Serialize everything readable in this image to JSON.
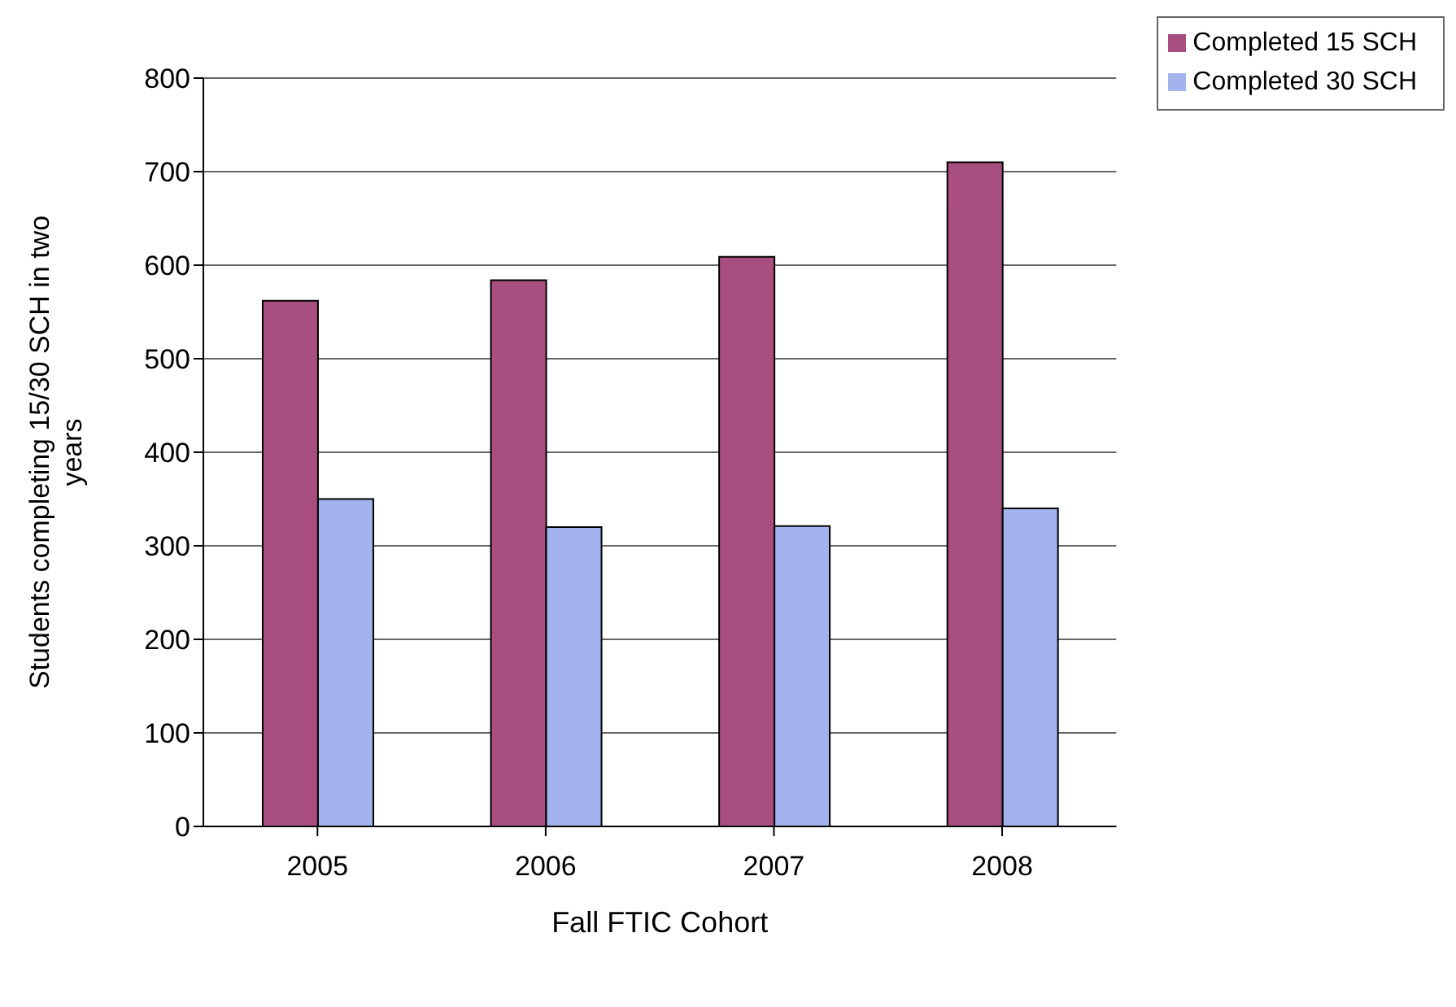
{
  "chart_data": {
    "type": "bar",
    "xlabel": "Fall FTIC Cohort",
    "ylabel": "Students completing 15/30 SCH in two years",
    "categories": [
      "2005",
      "2006",
      "2007",
      "2008"
    ],
    "series": [
      {
        "name": "Completed 15 SCH",
        "color": "#a94f80",
        "values": [
          562,
          584,
          609,
          710
        ]
      },
      {
        "name": "Completed 30 SCH",
        "color": "#a3b3ee",
        "values": [
          350,
          320,
          321,
          340
        ]
      }
    ],
    "ylim": [
      0,
      800
    ],
    "yticks": [
      0,
      100,
      200,
      300,
      400,
      500,
      600,
      700,
      800
    ],
    "grid": "y",
    "legend": "top right"
  }
}
